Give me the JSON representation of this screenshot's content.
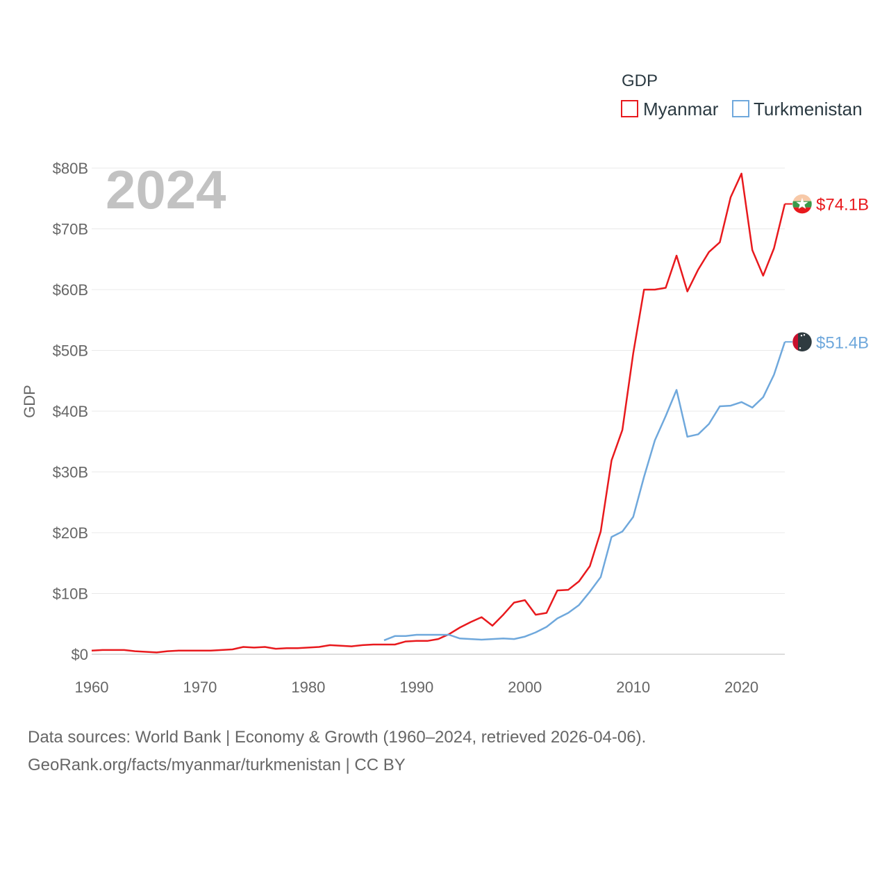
{
  "chart_data": {
    "type": "line",
    "legend_title": "GDP",
    "ylabel": "GDP",
    "xlabel": "",
    "year_label": "2024",
    "xlim": [
      1960,
      2024
    ],
    "ylim": [
      0,
      80
    ],
    "y_unit": "billion USD",
    "x_ticks": [
      "1960",
      "1970",
      "1980",
      "1990",
      "2000",
      "2010",
      "2020"
    ],
    "x_tick_values": [
      1960,
      1970,
      1980,
      1990,
      2000,
      2010,
      2020
    ],
    "y_ticks": [
      "$0",
      "$10B",
      "$20B",
      "$30B",
      "$40B",
      "$50B",
      "$60B",
      "$70B",
      "$80B"
    ],
    "y_tick_values": [
      0,
      10,
      20,
      30,
      40,
      50,
      60,
      70,
      80
    ],
    "series": [
      {
        "name": "Myanmar",
        "color": "#e8191d",
        "end_label": "$74.1B",
        "flag_icon": "myanmar-flag-icon",
        "x": [
          1960,
          1961,
          1962,
          1963,
          1964,
          1965,
          1966,
          1967,
          1968,
          1969,
          1970,
          1971,
          1972,
          1973,
          1974,
          1975,
          1976,
          1977,
          1978,
          1979,
          1980,
          1981,
          1982,
          1983,
          1984,
          1985,
          1986,
          1987,
          1988,
          1989,
          1990,
          1991,
          1992,
          1993,
          1994,
          1995,
          1996,
          1997,
          1998,
          1999,
          2000,
          2001,
          2002,
          2003,
          2004,
          2005,
          2006,
          2007,
          2008,
          2009,
          2010,
          2011,
          2012,
          2013,
          2014,
          2015,
          2016,
          2017,
          2018,
          2019,
          2020,
          2021,
          2022,
          2023,
          2024
        ],
        "values": [
          0.6,
          0.7,
          0.7,
          0.7,
          0.5,
          0.4,
          0.3,
          0.5,
          0.6,
          0.6,
          0.6,
          0.6,
          0.7,
          0.8,
          1.2,
          1.1,
          1.2,
          0.9,
          1.0,
          1.0,
          1.1,
          1.2,
          1.5,
          1.4,
          1.3,
          1.5,
          1.6,
          1.6,
          1.6,
          2.1,
          2.2,
          2.2,
          2.5,
          3.3,
          4.4,
          5.3,
          6.1,
          4.7,
          6.5,
          8.5,
          8.9,
          6.5,
          6.8,
          10.5,
          10.6,
          12.0,
          14.5,
          20.2,
          31.9,
          36.9,
          49.5,
          60.0,
          60.0,
          60.3,
          65.6,
          59.7,
          63.3,
          66.2,
          67.8,
          75.2,
          79.1,
          66.5,
          62.3,
          66.8,
          74.1
        ]
      },
      {
        "name": "Turkmenistan",
        "color": "#6fa8dc",
        "end_label": "$51.4B",
        "flag_icon": "turkmenistan-flag-icon",
        "x": [
          1987,
          1988,
          1989,
          1990,
          1991,
          1992,
          1993,
          1994,
          1995,
          1996,
          1997,
          1998,
          1999,
          2000,
          2001,
          2002,
          2003,
          2004,
          2005,
          2006,
          2007,
          2008,
          2009,
          2010,
          2011,
          2012,
          2013,
          2014,
          2015,
          2016,
          2017,
          2018,
          2019,
          2020,
          2021,
          2022,
          2023,
          2024
        ],
        "values": [
          2.3,
          3.0,
          3.0,
          3.2,
          3.2,
          3.2,
          3.2,
          2.6,
          2.5,
          2.4,
          2.5,
          2.6,
          2.5,
          2.9,
          3.6,
          4.5,
          5.9,
          6.8,
          8.1,
          10.3,
          12.7,
          19.3,
          20.2,
          22.6,
          29.2,
          35.2,
          39.2,
          43.5,
          35.8,
          36.2,
          37.9,
          40.8,
          40.9,
          41.5,
          40.6,
          42.3,
          46.0,
          51.4
        ]
      }
    ]
  },
  "source": {
    "line1": "Data sources: World Bank | Economy & Growth (1960–2024, retrieved 2026-04-06).",
    "line2": "GeoRank.org/facts/myanmar/turkmenistan | CC BY"
  }
}
